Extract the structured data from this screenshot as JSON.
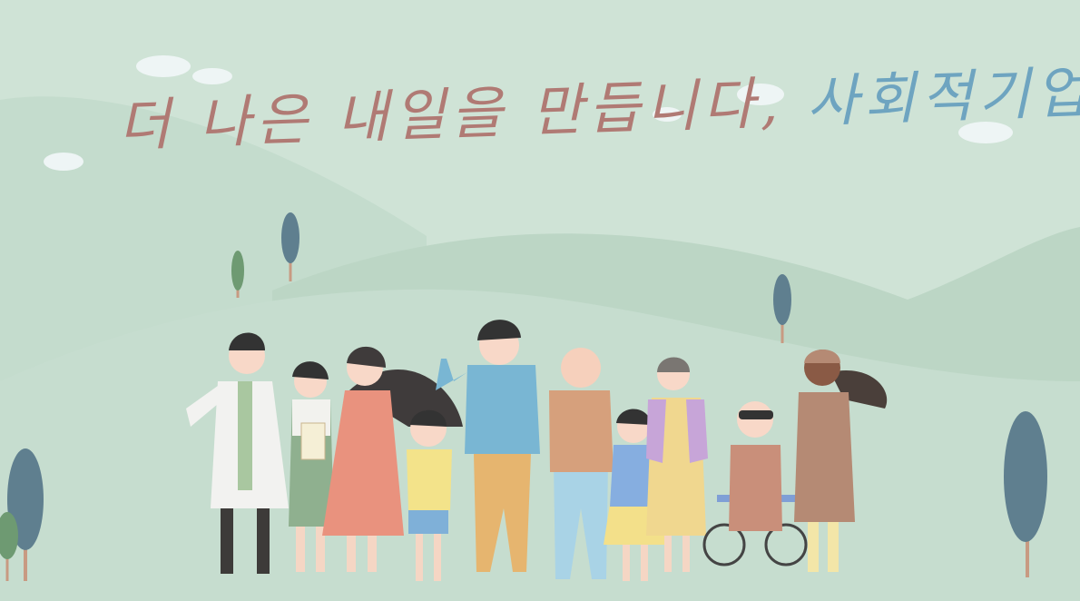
{
  "headline": {
    "part1": "더 나은 내일을 만듭니다,",
    "part2": "사회적기업!"
  },
  "colors": {
    "sky": "#cfe3d6",
    "hill_back": "#c2dacb",
    "hill_mid": "#b6d2c0",
    "text_rose": "#b07a74",
    "text_blue": "#6ea4c0"
  },
  "illustration": {
    "people": [
      "doctor",
      "nurse",
      "woman-pink-dress",
      "child-yellow-shirt",
      "man-blue-sweater",
      "grandfather",
      "girl-blue-shirt",
      "grandmother",
      "person-wheelchair",
      "caregiver-apron"
    ]
  }
}
